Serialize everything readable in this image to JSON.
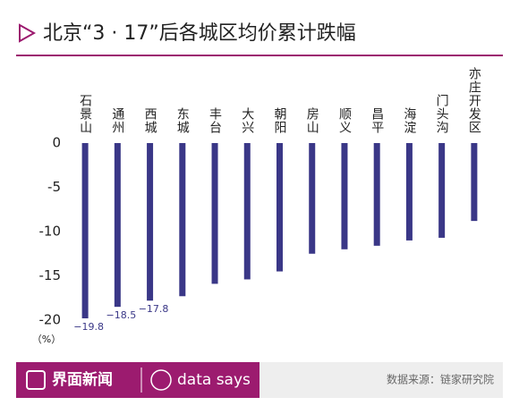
{
  "chart_data": {
    "type": "bar",
    "title": "北京“3 · 17”后各城区均价累计跌幅",
    "y_label": "（%）",
    "categories": [
      "石景山",
      "通州",
      "西城",
      "东城",
      "丰台",
      "大兴",
      "朝阳",
      "房山",
      "顺义",
      "昌平",
      "海淀",
      "门头沟",
      "亦庄开发区"
    ],
    "values": [
      -19.8,
      -18.5,
      -17.8,
      -17.3,
      -15.9,
      -15.4,
      -14.5,
      -12.5,
      -12.0,
      -11.6,
      -11.0,
      -10.7,
      -8.8
    ],
    "value_labels": [
      "−19.8",
      "−18.5",
      "−17.8",
      null,
      null,
      null,
      null,
      null,
      null,
      null,
      null,
      null,
      null
    ],
    "color": "#3a3787",
    "ylim": [
      -20,
      0
    ],
    "yticks": [
      0,
      -5,
      -10,
      -15,
      -20
    ],
    "grid": false,
    "brand": "界面新闻",
    "brand_sub": "data says",
    "source": "数据来源：链家研究院"
  }
}
